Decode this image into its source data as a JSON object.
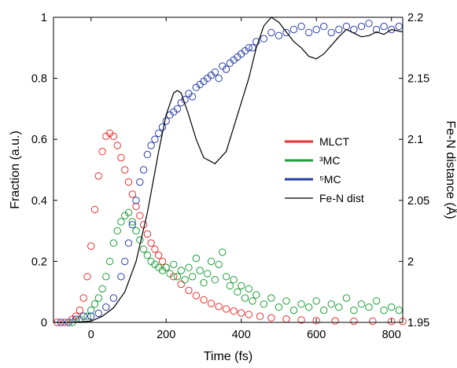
{
  "chart_data": {
    "type": "scatter",
    "title": "",
    "xlabel": "Time (fs)",
    "ylabel": "Fraction (a.u.)",
    "y2label": "Fe-N distance (Å)",
    "xlim": [
      -100,
      830
    ],
    "ylim": [
      0,
      1
    ],
    "y2lim": [
      1.95,
      2.2
    ],
    "xticks": [
      "0",
      "200",
      "400",
      "600",
      "800"
    ],
    "yticks": [
      "0",
      "0.2",
      "0.4",
      "0.6",
      "0.8",
      "1"
    ],
    "y2ticks": [
      "1.95",
      "2",
      "2.05",
      "2.1",
      "2.15",
      "2.2"
    ],
    "legend_position": "center-right",
    "series": [
      {
        "name": "MLCT",
        "color": "#e8312f",
        "marker": "circle",
        "x": [
          -90,
          -70,
          -50,
          -40,
          -30,
          -20,
          -10,
          0,
          10,
          20,
          30,
          40,
          50,
          60,
          70,
          80,
          90,
          100,
          110,
          120,
          130,
          140,
          150,
          160,
          170,
          180,
          190,
          200,
          220,
          240,
          260,
          280,
          300,
          320,
          340,
          360,
          380,
          400,
          420,
          450,
          480,
          520,
          560,
          600,
          650,
          700,
          750,
          800,
          830
        ],
        "values": [
          0.0,
          0.0,
          0.01,
          0.02,
          0.04,
          0.08,
          0.15,
          0.25,
          0.37,
          0.48,
          0.56,
          0.61,
          0.62,
          0.61,
          0.58,
          0.54,
          0.5,
          0.46,
          0.42,
          0.38,
          0.35,
          0.32,
          0.29,
          0.26,
          0.24,
          0.22,
          0.2,
          0.18,
          0.15,
          0.125,
          0.105,
          0.088,
          0.074,
          0.062,
          0.052,
          0.044,
          0.037,
          0.031,
          0.026,
          0.02,
          0.015,
          0.011,
          0.008,
          0.006,
          0.005,
          0.004,
          0.004,
          0.003,
          0.003
        ]
      },
      {
        "name": "³MC",
        "color": "#1f9e3a",
        "marker": "circle",
        "x": [
          -50,
          -30,
          -10,
          0,
          10,
          20,
          30,
          40,
          50,
          60,
          70,
          80,
          90,
          100,
          110,
          120,
          130,
          140,
          150,
          160,
          170,
          180,
          190,
          200,
          210,
          220,
          230,
          240,
          250,
          260,
          270,
          280,
          290,
          300,
          310,
          320,
          330,
          340,
          350,
          360,
          370,
          380,
          390,
          400,
          410,
          420,
          430,
          440,
          460,
          480,
          500,
          520,
          540,
          560,
          580,
          600,
          620,
          640,
          660,
          680,
          700,
          720,
          740,
          760,
          780,
          800,
          820
        ],
        "values": [
          0.0,
          0.01,
          0.02,
          0.04,
          0.06,
          0.08,
          0.11,
          0.15,
          0.2,
          0.26,
          0.3,
          0.33,
          0.35,
          0.36,
          0.33,
          0.3,
          0.27,
          0.24,
          0.22,
          0.2,
          0.19,
          0.18,
          0.17,
          0.18,
          0.16,
          0.19,
          0.15,
          0.17,
          0.14,
          0.18,
          0.15,
          0.21,
          0.17,
          0.13,
          0.16,
          0.2,
          0.14,
          0.19,
          0.23,
          0.15,
          0.12,
          0.14,
          0.1,
          0.12,
          0.08,
          0.11,
          0.07,
          0.09,
          0.06,
          0.08,
          0.05,
          0.07,
          0.04,
          0.06,
          0.05,
          0.07,
          0.04,
          0.06,
          0.05,
          0.08,
          0.04,
          0.06,
          0.05,
          0.07,
          0.04,
          0.05,
          0.04
        ]
      },
      {
        "name": "⁵MC",
        "color": "#2b3fa8",
        "marker": "circle",
        "x": [
          -80,
          -60,
          -40,
          -20,
          0,
          20,
          40,
          60,
          80,
          90,
          100,
          110,
          120,
          130,
          140,
          150,
          160,
          170,
          180,
          190,
          200,
          210,
          220,
          230,
          240,
          250,
          260,
          270,
          280,
          290,
          300,
          310,
          320,
          330,
          340,
          350,
          360,
          370,
          380,
          390,
          400,
          410,
          420,
          430,
          440,
          460,
          480,
          500,
          520,
          540,
          560,
          580,
          600,
          620,
          640,
          660,
          680,
          700,
          720,
          740,
          760,
          780,
          800,
          820
        ],
        "values": [
          0.0,
          0.0,
          0.01,
          0.02,
          0.02,
          0.03,
          0.05,
          0.08,
          0.15,
          0.2,
          0.26,
          0.32,
          0.4,
          0.46,
          0.5,
          0.55,
          0.58,
          0.6,
          0.62,
          0.64,
          0.66,
          0.68,
          0.69,
          0.7,
          0.72,
          0.73,
          0.75,
          0.74,
          0.77,
          0.78,
          0.79,
          0.8,
          0.81,
          0.82,
          0.8,
          0.84,
          0.83,
          0.85,
          0.86,
          0.87,
          0.88,
          0.89,
          0.9,
          0.9,
          0.92,
          0.93,
          0.95,
          0.94,
          0.95,
          0.96,
          0.97,
          0.95,
          0.96,
          0.97,
          0.95,
          0.96,
          0.97,
          0.96,
          0.97,
          0.98,
          0.96,
          0.97,
          0.96,
          0.97
        ]
      },
      {
        "name": "Fe-N dist",
        "color": "#000000",
        "marker": "line",
        "axis": "right",
        "x": [
          -100,
          -50,
          0,
          30,
          60,
          90,
          120,
          150,
          180,
          200,
          220,
          230,
          240,
          260,
          280,
          300,
          330,
          360,
          390,
          420,
          440,
          460,
          480,
          500,
          520,
          540,
          560,
          580,
          600,
          620,
          640,
          660,
          680,
          700,
          720,
          740,
          760,
          780,
          800,
          830
        ],
        "values": [
          1.95,
          1.95,
          1.951,
          1.955,
          1.962,
          1.975,
          2.0,
          2.04,
          2.09,
          2.12,
          2.138,
          2.14,
          2.138,
          2.12,
          2.1,
          2.085,
          2.08,
          2.09,
          2.12,
          2.15,
          2.175,
          2.193,
          2.2,
          2.196,
          2.188,
          2.18,
          2.175,
          2.168,
          2.166,
          2.17,
          2.177,
          2.184,
          2.19,
          2.187,
          2.184,
          2.185,
          2.188,
          2.186,
          2.19,
          2.188
        ]
      }
    ]
  }
}
